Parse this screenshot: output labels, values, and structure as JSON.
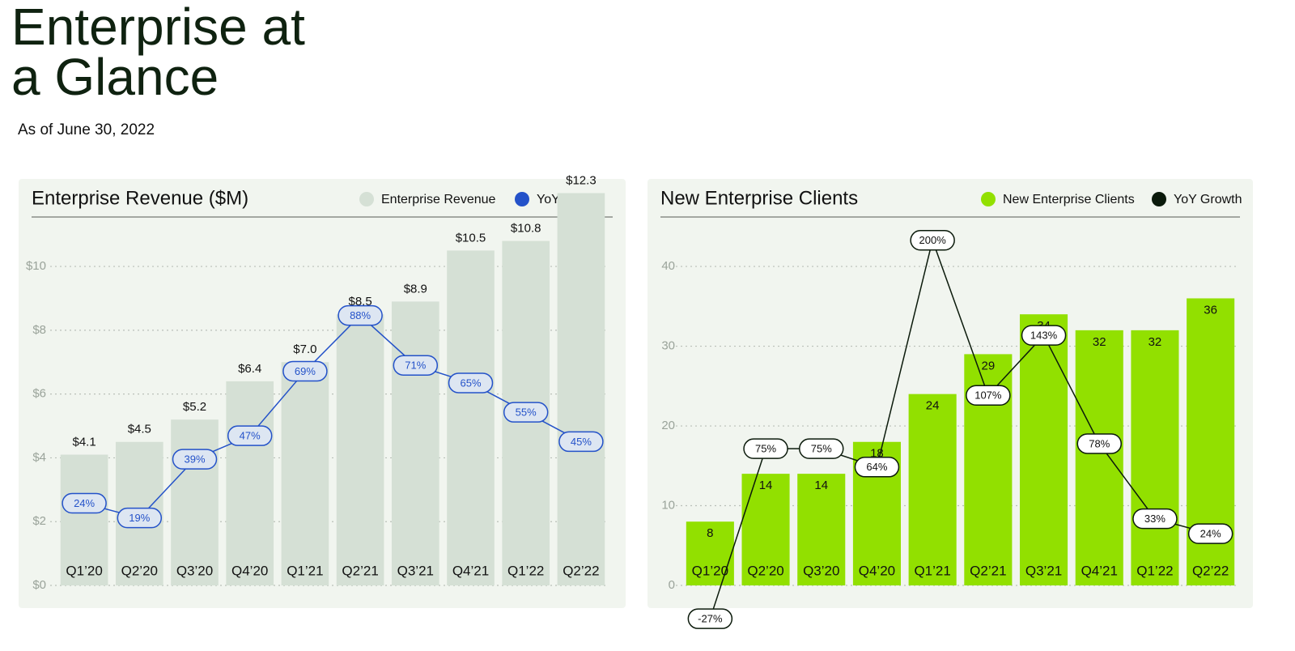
{
  "title": "Enterprise at a Glance",
  "subtitle": "As of June 30, 2022",
  "chart_data": [
    {
      "type": "bar",
      "title": "Enterprise Revenue ($M)",
      "categories": [
        "Q1’20",
        "Q2’20",
        "Q3’20",
        "Q4’20",
        "Q1’21",
        "Q2’21",
        "Q3’21",
        "Q4’21",
        "Q1’22",
        "Q2’22"
      ],
      "series": [
        {
          "name": "Enterprise Revenue",
          "color": "#d5e0d5",
          "values": [
            4.1,
            4.5,
            5.2,
            6.4,
            7.0,
            8.5,
            8.9,
            10.5,
            10.8,
            12.3
          ],
          "value_labels": [
            "$4.1",
            "$4.5",
            "$5.2",
            "$6.4",
            "$7.0",
            "$8.5",
            "$8.9",
            "$10.5",
            "$10.8",
            "$12.3"
          ]
        },
        {
          "name": "YoY Growth",
          "color": "#2452c9",
          "type": "line",
          "axis": "y2",
          "values": [
            24,
            19,
            39,
            47,
            69,
            88,
            71,
            65,
            55,
            45
          ],
          "value_labels": [
            "24%",
            "19%",
            "39%",
            "47%",
            "69%",
            "88%",
            "71%",
            "65%",
            "55%",
            "45%"
          ]
        }
      ],
      "ylim": [
        0,
        11.5
      ],
      "yticks": [
        {
          "value": 0,
          "label": "$0"
        },
        {
          "value": 2,
          "label": "$2"
        },
        {
          "value": 4,
          "label": "$4"
        },
        {
          "value": 6,
          "label": "$6"
        },
        {
          "value": 8,
          "label": "$8"
        },
        {
          "value": 10,
          "label": "$10"
        }
      ],
      "y2lim": [
        -4,
        121
      ],
      "grid": true
    },
    {
      "type": "bar",
      "title": "New Enterprise Clients",
      "categories": [
        "Q1’20",
        "Q2’20",
        "Q3’20",
        "Q4’20",
        "Q1’21",
        "Q2’21",
        "Q3’21",
        "Q4’21",
        "Q1’22",
        "Q2’22"
      ],
      "series": [
        {
          "name": "New Enterprise Clients",
          "color": "#92e000",
          "values": [
            8,
            14,
            14,
            18,
            24,
            29,
            34,
            32,
            32,
            36
          ]
        },
        {
          "name": "YoY Growth",
          "color": "#0b1a0b",
          "type": "line",
          "axis": "y2",
          "values": [
            -27,
            75,
            75,
            64,
            200,
            107,
            143,
            78,
            33,
            24
          ],
          "value_labels": [
            "-27%",
            "75%",
            "75%",
            "64%",
            "200%",
            "107%",
            "143%",
            "78%",
            "33%",
            "24%"
          ]
        }
      ],
      "ylim": [
        0,
        46
      ],
      "yticks": [
        0,
        10,
        20,
        30,
        40
      ],
      "y2lim": [
        -7,
        213
      ],
      "grid": true
    }
  ]
}
